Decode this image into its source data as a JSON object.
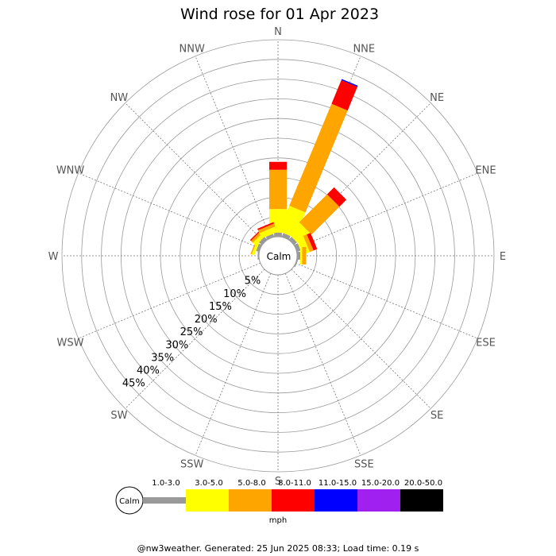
{
  "title": "Wind rose for 01 Apr 2023",
  "footer": "@nw3weather. Generated: 25 Jun 2025 08:33; Load time: 0.19 s",
  "calm_label": "Calm",
  "legend_unit": "mph",
  "chart_data": {
    "type": "windrose",
    "title": "Wind rose for 01 Apr 2023",
    "directions": [
      "N",
      "NNE",
      "NE",
      "ENE",
      "E",
      "ESE",
      "SE",
      "SSE",
      "S",
      "SSW",
      "SW",
      "WSW",
      "W",
      "WNW",
      "NW",
      "NNW"
    ],
    "radial_ticks": [
      "5%",
      "10%",
      "15%",
      "20%",
      "25%",
      "30%",
      "35%",
      "40%",
      "45%"
    ],
    "rmax_percent": 50,
    "bins": [
      {
        "label": "1.0-3.0",
        "color": "#999999"
      },
      {
        "label": "3.0-5.0",
        "color": "#ffff00"
      },
      {
        "label": "5.0-8.0",
        "color": "#ffa500"
      },
      {
        "label": "8.0-11.0",
        "color": "#ff0000"
      },
      {
        "label": "11.0-15.0",
        "color": "#0000ff"
      },
      {
        "label": "15.0-20.0",
        "color": "#a020f0"
      },
      {
        "label": "20.0-50.0",
        "color": "#000000"
      }
    ],
    "values": {
      "N": [
        1.0,
        6.0,
        10.0,
        2.0,
        0,
        0,
        0
      ],
      "NNE": [
        1.0,
        7.0,
        28.0,
        6.5,
        0.3,
        0,
        0
      ],
      "NE": [
        1.0,
        4.0,
        10.0,
        2.5,
        0,
        0,
        0
      ],
      "ENE": [
        1.0,
        2.0,
        1.0,
        1.0,
        0,
        0,
        0
      ],
      "E": [
        0.8,
        0.5,
        1.0,
        0,
        0,
        0,
        0
      ],
      "ESE": [
        0.3,
        0,
        0,
        0,
        0,
        0,
        0
      ],
      "SE": [
        0,
        0,
        0,
        0,
        0,
        0,
        0
      ],
      "SSE": [
        0,
        0,
        0,
        0,
        0,
        0,
        0
      ],
      "S": [
        0,
        0,
        0,
        0,
        0,
        0,
        0
      ],
      "SSW": [
        0,
        0,
        0,
        0,
        0,
        0,
        0
      ],
      "SW": [
        0,
        0,
        0,
        0,
        0,
        0,
        0
      ],
      "WSW": [
        0,
        0,
        0,
        0,
        0,
        0,
        0
      ],
      "W": [
        0.3,
        0,
        0,
        0,
        0,
        0,
        0
      ],
      "WNW": [
        0.8,
        0.7,
        0.3,
        0,
        0,
        0,
        0
      ],
      "NW": [
        1.0,
        1.0,
        0.7,
        0.3,
        0,
        0,
        0
      ],
      "NNW": [
        0.8,
        1.5,
        0.8,
        0.4,
        0,
        0,
        0
      ]
    }
  }
}
